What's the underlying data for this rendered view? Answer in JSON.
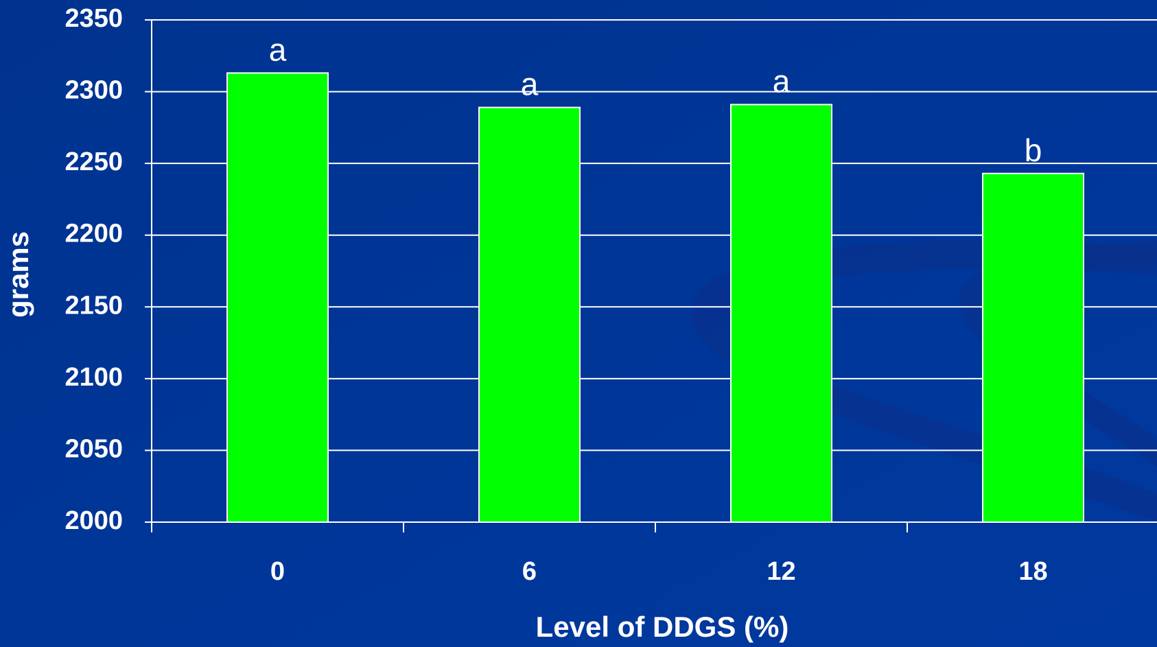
{
  "chart_data": {
    "type": "bar",
    "categories": [
      "0",
      "6",
      "12",
      "18"
    ],
    "values": [
      2313,
      2289,
      2291,
      2243
    ],
    "annotations": [
      "a",
      "a",
      "a",
      "b"
    ],
    "color": "#00ff00",
    "xlabel": "Level of DDGS (%)",
    "ylabel": "grams",
    "ylim": [
      2000,
      2350
    ],
    "yticks": [
      2000,
      2050,
      2100,
      2150,
      2200,
      2250,
      2300,
      2350
    ],
    "grid": true
  }
}
